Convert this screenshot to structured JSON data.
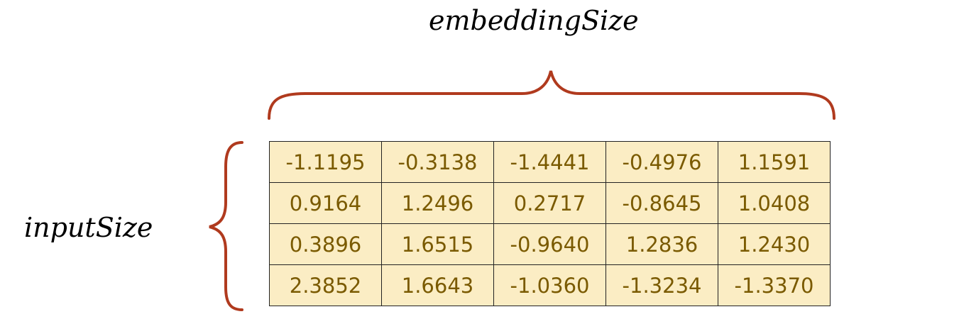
{
  "labels": {
    "top": "embeddingSize",
    "left": "inputSize"
  },
  "colors": {
    "brace": "#b03a1e",
    "cell_fill": "#fbedc4",
    "cell_text": "#7a5a00",
    "border": "#222222"
  },
  "matrix": {
    "rows": [
      [
        "-1.1195",
        "-0.3138",
        "-1.4441",
        "-0.4976",
        "1.1591"
      ],
      [
        "0.9164",
        "1.2496",
        "0.2717",
        "-0.8645",
        "1.0408"
      ],
      [
        "0.3896",
        "1.6515",
        "-0.9640",
        "1.2836",
        "1.2430"
      ],
      [
        "2.3852",
        "1.6643",
        "-1.0360",
        "-1.3234",
        "-1.3370"
      ]
    ]
  }
}
